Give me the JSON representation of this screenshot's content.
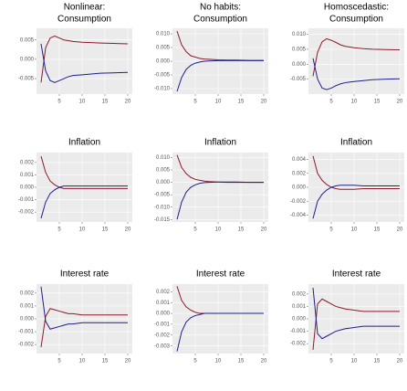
{
  "chart_data": [
    {
      "type": "line",
      "header": "Nonlinear:",
      "title": "Consumption",
      "x": [
        1,
        2,
        3,
        4,
        5,
        6,
        7,
        8,
        10,
        12,
        14,
        17,
        20
      ],
      "xlim": [
        0,
        21
      ],
      "xticks": [
        5,
        10,
        15,
        20
      ],
      "ylim": [
        -0.009,
        0.008
      ],
      "yticks": [
        -0.005,
        {
          "value": 0,
          "label": "0.000"
        },
        0.005
      ],
      "grid": true,
      "series": [
        {
          "color": "#8b1a2b",
          "values": [
            -0.006,
            0.003,
            0.0055,
            0.006,
            0.0055,
            0.005,
            0.0048,
            0.0046,
            0.0044,
            0.0043,
            0.0042,
            0.0041,
            0.004
          ]
        },
        {
          "color": "#1f1f8f",
          "values": [
            0.004,
            -0.003,
            -0.0055,
            -0.006,
            -0.0055,
            -0.005,
            -0.0045,
            -0.0042,
            -0.004,
            -0.0038,
            -0.0036,
            -0.0035,
            -0.0034
          ]
        }
      ]
    },
    {
      "type": "line",
      "header": "No habits:",
      "title": "Consumption",
      "x": [
        1,
        2,
        3,
        4,
        5,
        6,
        7,
        8,
        10,
        12,
        14,
        17,
        20
      ],
      "xlim": [
        0,
        21
      ],
      "xticks": [
        5,
        10,
        15,
        20
      ],
      "ylim": [
        -0.012,
        0.012
      ],
      "yticks": [
        {
          "value": -0.01,
          "label": "-0.010"
        },
        -0.005,
        {
          "value": 0,
          "label": "0.000"
        },
        0.005,
        {
          "value": 0.01,
          "label": "0.010"
        }
      ],
      "grid": true,
      "series": [
        {
          "color": "#8b1a2b",
          "values": [
            0.011,
            0.006,
            0.0035,
            0.002,
            0.0015,
            0.001,
            0.0008,
            0.0007,
            0.0005,
            0.0004,
            0.0004,
            0.0003,
            0.0003
          ]
        },
        {
          "color": "#1f1f8f",
          "values": [
            -0.011,
            -0.006,
            -0.003,
            -0.0015,
            -0.0007,
            -0.0003,
            0,
            0.0001,
            0.0002,
            0.0002,
            0.0002,
            0.0002,
            0.0002
          ]
        }
      ]
    },
    {
      "type": "line",
      "header": "Homoscedastic:",
      "title": "Consumption",
      "x": [
        1,
        2,
        3,
        4,
        5,
        6,
        7,
        8,
        10,
        12,
        14,
        17,
        20
      ],
      "xlim": [
        0,
        21
      ],
      "xticks": [
        5,
        10,
        15,
        20
      ],
      "ylim": [
        -0.01,
        0.012
      ],
      "yticks": [
        -0.005,
        {
          "value": 0,
          "label": "0.000"
        },
        0.005,
        {
          "value": 0.01,
          "label": "0.010"
        }
      ],
      "grid": true,
      "series": [
        {
          "color": "#8b1a2b",
          "values": [
            -0.004,
            0.004,
            0.0075,
            0.0085,
            0.008,
            0.0073,
            0.0065,
            0.006,
            0.0055,
            0.0052,
            0.005,
            0.0049,
            0.0048
          ]
        },
        {
          "color": "#1f1f8f",
          "values": [
            0.002,
            -0.005,
            -0.008,
            -0.0085,
            -0.008,
            -0.0072,
            -0.0066,
            -0.0062,
            -0.0058,
            -0.0055,
            -0.0052,
            -0.005,
            -0.0049
          ]
        }
      ]
    },
    {
      "type": "line",
      "title": "Inflation",
      "x": [
        1,
        2,
        3,
        4,
        5,
        6,
        7,
        8,
        10,
        12,
        14,
        17,
        20
      ],
      "xlim": [
        0,
        21
      ],
      "xticks": [
        5,
        10,
        15,
        20
      ],
      "ylim": [
        -0.0028,
        0.0028
      ],
      "yticks": [
        -0.002,
        -0.001,
        {
          "value": 0,
          "label": "0.000"
        },
        0.001,
        0.002
      ],
      "grid": true,
      "series": [
        {
          "color": "#8b1a2b",
          "values": [
            0.0025,
            0.0012,
            0.0005,
            0.0002,
            0,
            -0.0001,
            -0.0001,
            -0.0001,
            -0.0001,
            -0.0001,
            -0.0001,
            -0.0001,
            -0.0001
          ]
        },
        {
          "color": "#1f1f8f",
          "values": [
            -0.0025,
            -0.0012,
            -0.0005,
            -0.0002,
            0,
            0.0001,
            0.0001,
            0.0001,
            0.0001,
            0.0001,
            0.0001,
            0.0001,
            0.0001
          ]
        }
      ]
    },
    {
      "type": "line",
      "title": "Inflation",
      "x": [
        1,
        2,
        3,
        4,
        5,
        6,
        7,
        8,
        10,
        12,
        14,
        17,
        20
      ],
      "xlim": [
        0,
        21
      ],
      "xticks": [
        5,
        10,
        15,
        20
      ],
      "ylim": [
        -0.016,
        0.012
      ],
      "yticks": [
        -0.015,
        {
          "value": -0.01,
          "label": "-0.010"
        },
        -0.005,
        {
          "value": 0,
          "label": "0.000"
        },
        0.005,
        {
          "value": 0.01,
          "label": "0.010"
        }
      ],
      "grid": true,
      "series": [
        {
          "color": "#8b1a2b",
          "values": [
            0.011,
            0.006,
            0.0035,
            0.002,
            0.0012,
            0.0008,
            0.0005,
            0.0003,
            0.0001,
            0,
            0,
            0,
            0
          ]
        },
        {
          "color": "#1f1f8f",
          "values": [
            -0.015,
            -0.008,
            -0.004,
            -0.002,
            -0.001,
            -0.0004,
            -0.0001,
            0,
            0.0001,
            0.0001,
            0.0001,
            0,
            0
          ]
        }
      ]
    },
    {
      "type": "line",
      "title": "Inflation",
      "x": [
        1,
        2,
        3,
        4,
        5,
        6,
        7,
        8,
        10,
        12,
        14,
        17,
        20
      ],
      "xlim": [
        0,
        21
      ],
      "xticks": [
        5,
        10,
        15,
        20
      ],
      "ylim": [
        -0.005,
        0.005
      ],
      "yticks": [
        -0.004,
        -0.002,
        {
          "value": 0,
          "label": "0.000"
        },
        0.002,
        0.004
      ],
      "grid": true,
      "series": [
        {
          "color": "#8b1a2b",
          "values": [
            0.0045,
            0.002,
            0.001,
            0.0004,
            0,
            -0.0002,
            -0.0003,
            -0.0003,
            -0.0003,
            -0.0002,
            -0.0002,
            -0.0002,
            -0.0002
          ]
        },
        {
          "color": "#1f1f8f",
          "values": [
            -0.0045,
            -0.002,
            -0.001,
            -0.0004,
            0,
            0.0002,
            0.0003,
            0.0003,
            0.0003,
            0.0002,
            0.0002,
            0.0002,
            0.0002
          ]
        }
      ]
    },
    {
      "type": "line",
      "title": "Interest rate",
      "x": [
        1,
        2,
        3,
        4,
        5,
        6,
        7,
        8,
        10,
        12,
        14,
        17,
        20
      ],
      "xlim": [
        0,
        21
      ],
      "xticks": [
        5,
        10,
        15,
        20
      ],
      "ylim": [
        -0.0027,
        0.0027
      ],
      "yticks": [
        -0.002,
        -0.001,
        {
          "value": 0,
          "label": "0.000"
        },
        0.001,
        0.002
      ],
      "grid": true,
      "series": [
        {
          "color": "#8b1a2b",
          "values": [
            -0.0022,
            0.0002,
            0.0008,
            0.0007,
            0.0006,
            0.0005,
            0.0004,
            0.0004,
            0.0003,
            0.0003,
            0.0003,
            0.0003,
            0.0003
          ]
        },
        {
          "color": "#1f1f8f",
          "values": [
            0.0025,
            -0.0002,
            -0.0008,
            -0.0007,
            -0.0006,
            -0.0005,
            -0.0004,
            -0.0004,
            -0.0003,
            -0.0003,
            -0.0003,
            -0.0003,
            -0.0003
          ]
        }
      ]
    },
    {
      "type": "line",
      "title": "Interest rate",
      "x": [
        1,
        2,
        3,
        4,
        5,
        6,
        7,
        8,
        10,
        12,
        14,
        17,
        20
      ],
      "xlim": [
        0,
        21
      ],
      "xticks": [
        5,
        10,
        15,
        20
      ],
      "ylim": [
        -0.0037,
        0.0027
      ],
      "yticks": [
        -0.003,
        -0.002,
        -0.001,
        {
          "value": 0,
          "label": "0.000"
        },
        0.001,
        0.002
      ],
      "grid": true,
      "series": [
        {
          "color": "#8b1a2b",
          "values": [
            0.0025,
            0.0012,
            0.0006,
            0.0003,
            0.0001,
            0,
            0,
            0,
            0,
            0,
            0,
            0,
            0
          ]
        },
        {
          "color": "#1f1f8f",
          "values": [
            -0.0035,
            -0.0017,
            -0.0008,
            -0.0004,
            -0.0002,
            -0.0001,
            0,
            0,
            0,
            0,
            0,
            0,
            0
          ]
        }
      ]
    },
    {
      "type": "line",
      "title": "Interest rate",
      "x": [
        1,
        2,
        3,
        4,
        5,
        6,
        7,
        8,
        10,
        12,
        14,
        17,
        20
      ],
      "xlim": [
        0,
        21
      ],
      "xticks": [
        5,
        10,
        15,
        20
      ],
      "ylim": [
        -0.0028,
        0.0028
      ],
      "yticks": [
        -0.002,
        -0.001,
        {
          "value": 0,
          "label": "0.000"
        },
        0.001,
        0.002
      ],
      "grid": true,
      "series": [
        {
          "color": "#8b1a2b",
          "values": [
            -0.0025,
            0.0012,
            0.0016,
            0.0014,
            0.0012,
            0.001,
            0.0009,
            0.0008,
            0.0007,
            0.0006,
            0.0006,
            0.0006,
            0.0006
          ]
        },
        {
          "color": "#1f1f8f",
          "values": [
            0.0025,
            -0.0012,
            -0.0016,
            -0.0014,
            -0.0012,
            -0.001,
            -0.0009,
            -0.0008,
            -0.0007,
            -0.0006,
            -0.0006,
            -0.0006,
            -0.0006
          ]
        }
      ]
    }
  ]
}
